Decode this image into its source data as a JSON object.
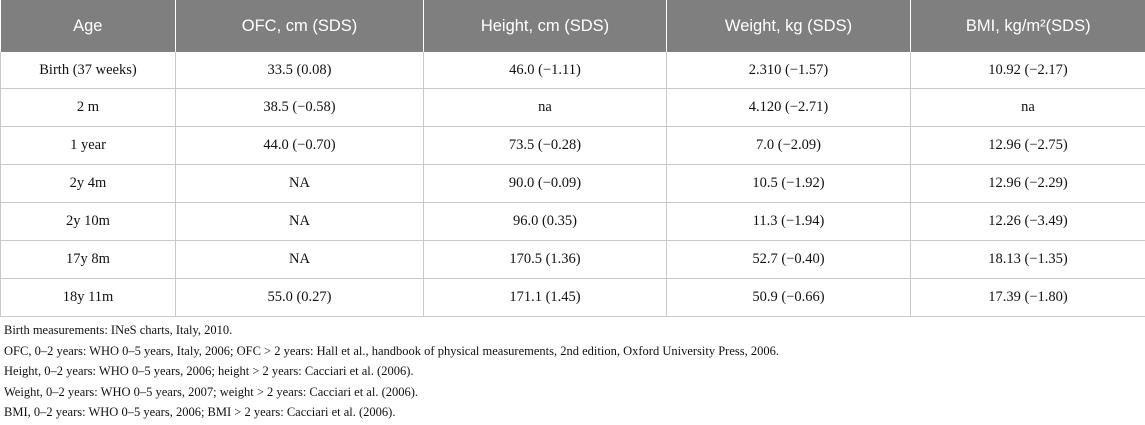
{
  "table": {
    "headers": [
      "Age",
      "OFC, cm (SDS)",
      "Height, cm (SDS)",
      "Weight, kg (SDS)",
      "BMI, kg/m²(SDS)"
    ],
    "rows": [
      [
        "Birth (37 weeks)",
        "33.5 (0.08)",
        "46.0 (−1.11)",
        "2.310 (−1.57)",
        "10.92 (−2.17)"
      ],
      [
        "2 m",
        "38.5 (−0.58)",
        "na",
        "4.120 (−2.71)",
        "na"
      ],
      [
        "1 year",
        "44.0 (−0.70)",
        "73.5 (−0.28)",
        "7.0 (−2.09)",
        "12.96 (−2.75)"
      ],
      [
        "2y 4m",
        "NA",
        "90.0 (−0.09)",
        "10.5 (−1.92)",
        "12.96 (−2.29)"
      ],
      [
        "2y 10m",
        "NA",
        "96.0 (0.35)",
        "11.3 (−1.94)",
        "12.26 (−3.49)"
      ],
      [
        "17y 8m",
        "NA",
        "170.5 (1.36)",
        "52.7 (−0.40)",
        "18.13 (−1.35)"
      ],
      [
        "18y 11m",
        "55.0 (0.27)",
        "171.1 (1.45)",
        "50.9 (−0.66)",
        "17.39 (−1.80)"
      ]
    ]
  },
  "footnotes": [
    "Birth measurements: INeS charts, Italy, 2010.",
    "OFC, 0–2 years: WHO 0–5 years, Italy, 2006; OFC > 2 years: Hall et al., handbook of physical measurements, 2nd edition, Oxford University Press, 2006.",
    "Height, 0–2 years: WHO 0–5 years, 2006; height > 2 years: Cacciari et al. (2006).",
    "Weight, 0–2 years: WHO 0–5 years, 2007; weight > 2 years: Cacciari et al. (2006).",
    "BMI, 0–2 years: WHO 0–5 years, 2006; BMI > 2 years: Cacciari et al. (2006)."
  ]
}
